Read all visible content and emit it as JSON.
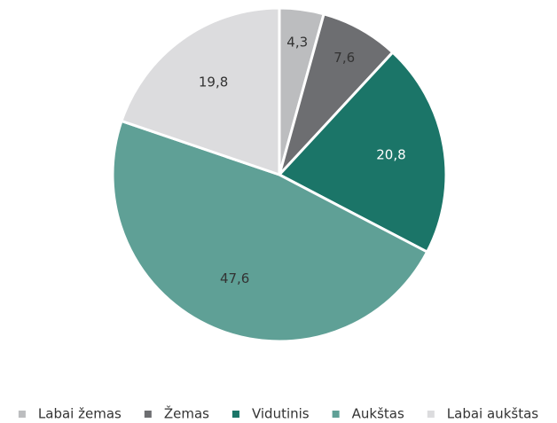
{
  "chart_data": {
    "type": "pie",
    "categories": [
      "Labai žemas",
      "Žemas",
      "Vidutinis",
      "Aukštas",
      "Labai aukštas"
    ],
    "values": [
      4.3,
      7.6,
      20.8,
      47.6,
      19.8
    ],
    "value_labels": [
      "4,3",
      "7,6",
      "20,8",
      "47,6",
      "19,8"
    ],
    "colors": [
      "#bcbdbf",
      "#6d6e71",
      "#1b7568",
      "#5fa096",
      "#dcdcde"
    ],
    "legend": "bottom"
  }
}
